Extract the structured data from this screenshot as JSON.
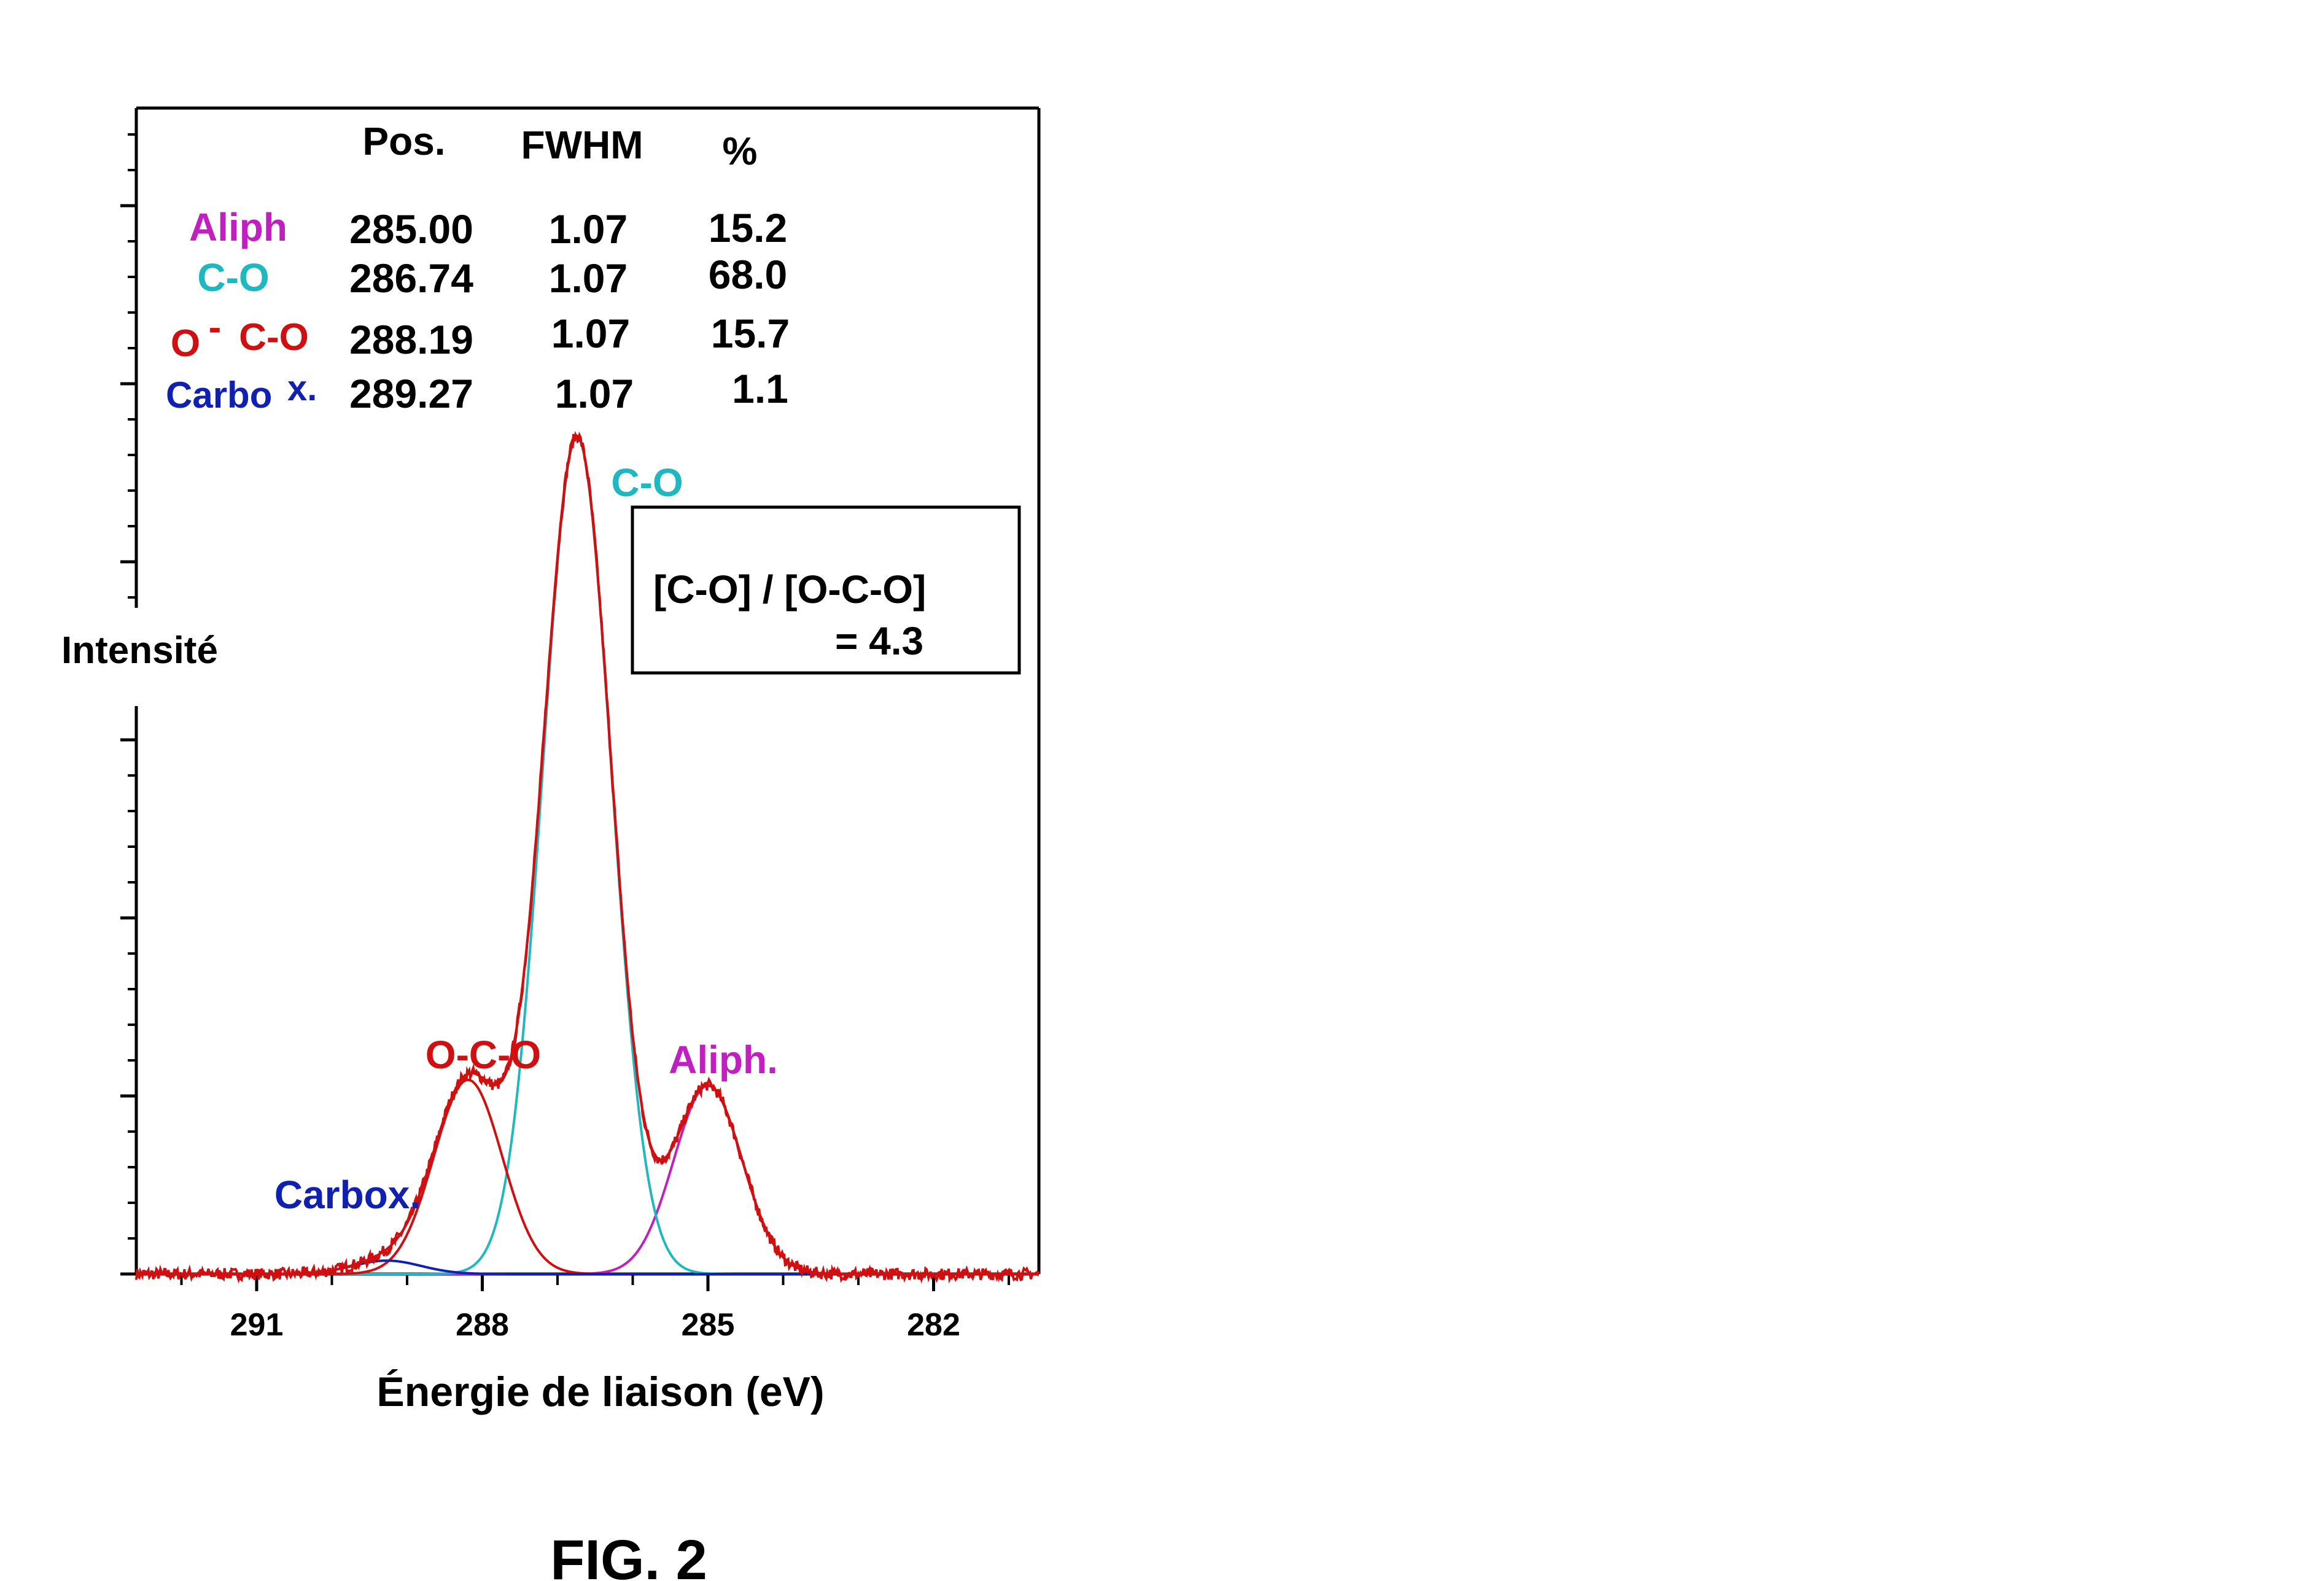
{
  "chart_data": {
    "type": "line",
    "title": "",
    "xlabel": "Énergie de liaison (eV)",
    "ylabel": "Intensité",
    "x_reversed": true,
    "xlim": [
      292.6,
      280.6
    ],
    "ylim": [
      0,
      100
    ],
    "x_ticks": [
      291,
      288,
      285,
      282
    ],
    "x_ticks_minor": [
      292,
      290,
      289,
      287,
      286,
      284,
      283,
      281
    ],
    "grid": false,
    "table": {
      "headers": [
        "Pos.",
        "FWHM",
        "%"
      ],
      "rows": [
        {
          "label": "Aliph",
          "pos": "285.00",
          "fwhm": "1.07",
          "pct": "15.2",
          "color": "#c020c0"
        },
        {
          "label": "C-O",
          "pos": "286.74",
          "fwhm": "1.07",
          "pct": "68.0",
          "color": "#20b8c0"
        },
        {
          "label_main": "O",
          "label_dash": "-",
          "label_rest": "C-O",
          "pos": "288.19",
          "fwhm": "1.07",
          "pct": "15.7",
          "color": "#d01010"
        },
        {
          "label_main": "Carbo",
          "label_sup": "x.",
          "pos": "289.27",
          "fwhm": "1.07",
          "pct": "1.1",
          "color": "#1020b0"
        }
      ]
    },
    "ratio_box": {
      "line1": "[C-O] / [O-C-O]",
      "line2": "= 4.3"
    },
    "annotations": [
      {
        "text": "C-O",
        "color": "#20b8c0"
      },
      {
        "text": "O-C-O",
        "color": "#d01010"
      },
      {
        "text": "Aliph.",
        "color": "#c020c0"
      },
      {
        "text": "Carbox.",
        "color": "#1020b0"
      }
    ],
    "components": [
      {
        "name": "Aliph",
        "center": 285.0,
        "fwhm": 1.07,
        "height": 22.5,
        "color": "#c020c0"
      },
      {
        "name": "C-O",
        "center": 286.74,
        "fwhm": 1.07,
        "height": 100.0,
        "color": "#20b8c0"
      },
      {
        "name": "O-C-O",
        "center": 288.19,
        "fwhm": 1.07,
        "height": 23.2,
        "color": "#d01010"
      },
      {
        "name": "Carbox.",
        "center": 289.27,
        "fwhm": 1.07,
        "height": 1.6,
        "color": "#1020b0"
      }
    ],
    "envelope_color": "#d01010"
  },
  "figure_label": "FIG. 2"
}
